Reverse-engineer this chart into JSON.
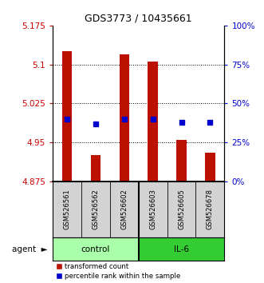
{
  "title": "GDS3773 / 10435661",
  "samples": [
    "GSM526561",
    "GSM526562",
    "GSM526602",
    "GSM526603",
    "GSM526605",
    "GSM526678"
  ],
  "bar_tops": [
    5.125,
    4.925,
    5.12,
    5.105,
    4.955,
    4.93
  ],
  "bar_bottom": 4.875,
  "percentile_values": [
    4.995,
    4.985,
    4.995,
    4.995,
    4.988,
    4.988
  ],
  "ylim": [
    4.875,
    5.175
  ],
  "yticks_left": [
    4.875,
    4.95,
    5.025,
    5.1,
    5.175
  ],
  "yticks_right": [
    0,
    25,
    50,
    75,
    100
  ],
  "hlines": [
    4.95,
    5.025,
    5.1
  ],
  "bar_color": "#BB1100",
  "square_color": "#0000CC",
  "bar_width": 0.35,
  "legend_items": [
    {
      "label": "transformed count",
      "color": "#BB1100"
    },
    {
      "label": "percentile rank within the sample",
      "color": "#0000CC"
    }
  ],
  "left_label_color": "#CC0000",
  "right_label_color": "#0000CC",
  "ctrl_color": "#AAFFAA",
  "il6_color": "#33CC33"
}
